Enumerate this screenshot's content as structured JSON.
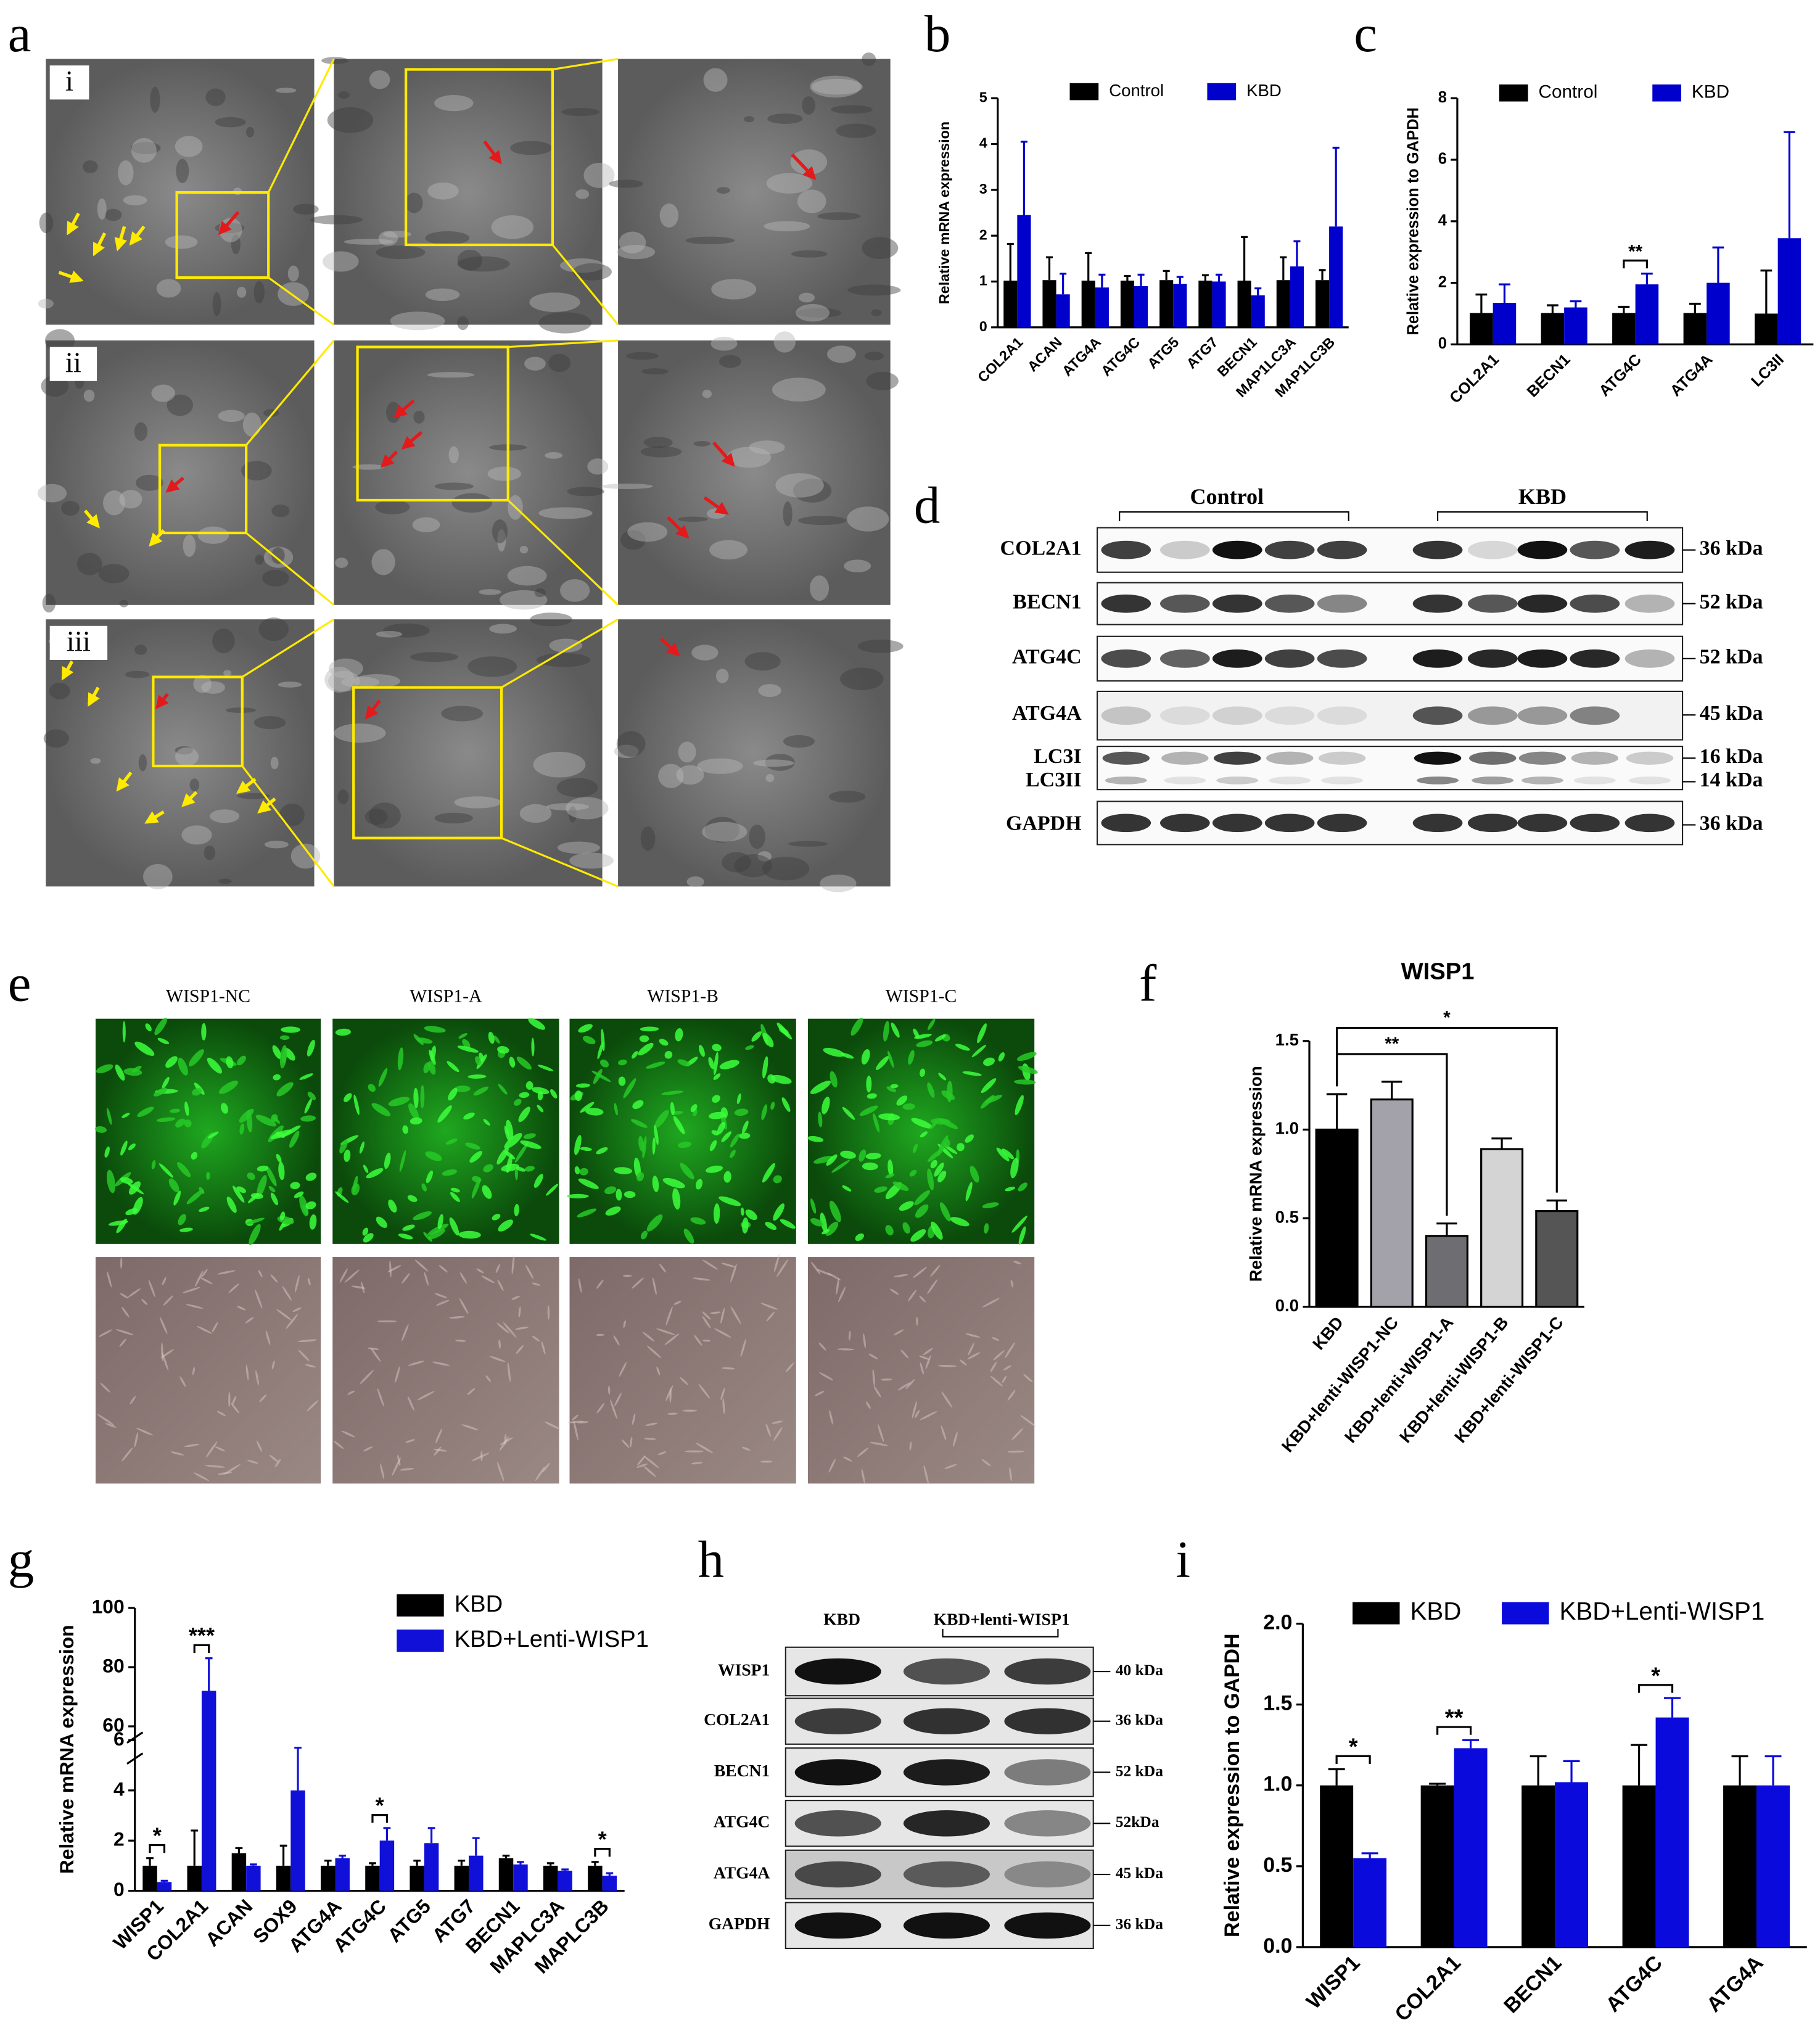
{
  "panel_labels": [
    "a",
    "b",
    "c",
    "d",
    "e",
    "f",
    "g",
    "h",
    "i"
  ],
  "tem": {
    "rows": [
      "i",
      "ii",
      "iii"
    ]
  },
  "blot_d": {
    "groups": [
      "Control",
      "KBD"
    ],
    "labels": [
      "COL2A1",
      "BECN1",
      "ATG4C",
      "ATG4A",
      "LC3I",
      "LC3II",
      "GAPDH"
    ],
    "sizes": [
      "36 kDa",
      "52 kDa",
      "52 kDa",
      "45 kDa",
      "16 kDa",
      "14 kDa",
      "36 kDa"
    ]
  },
  "fluorescence": {
    "columns": [
      "WISP1-NC",
      "WISP1-A",
      "WISP1-B",
      "WISP1-C"
    ]
  },
  "blot_h": {
    "groups": [
      "KBD",
      "KBD+lenti-WISP1"
    ],
    "labels": [
      "WISP1",
      "COL2A1",
      "BECN1",
      "ATG4C",
      "ATG4A",
      "GAPDH"
    ],
    "sizes": [
      "40 kDa",
      "36 kDa",
      "52 kDa",
      "52kDa",
      "45 kDa",
      "36 kDa"
    ]
  },
  "chart_data": [
    {
      "type": "bar",
      "y_label": "Relative mRNA expression",
      "categories": [
        "COL2A1",
        "ACAN",
        "ATG4A",
        "ATG4C",
        "ATG5",
        "ATG7",
        "BECN1",
        "MAP1LC3A",
        "MAP1LC3B"
      ],
      "series": [
        {
          "name": "Control",
          "color": "#000000",
          "values": [
            1.02,
            1.03,
            1.02,
            1.02,
            1.03,
            1.02,
            1.02,
            1.03,
            1.03
          ],
          "errors": [
            0.8,
            0.5,
            0.6,
            0.1,
            0.2,
            0.12,
            0.95,
            0.5,
            0.22
          ]
        },
        {
          "name": "KBD",
          "color": "#0000cc",
          "values": [
            2.45,
            0.72,
            0.87,
            0.9,
            0.95,
            1.0,
            0.7,
            1.33,
            2.2
          ],
          "errors": [
            1.6,
            0.45,
            0.28,
            0.25,
            0.15,
            0.15,
            0.15,
            0.55,
            1.72
          ]
        }
      ],
      "ylim": [
        0,
        5
      ],
      "yticks": [
        0,
        1,
        2,
        3,
        4,
        5
      ]
    },
    {
      "type": "bar",
      "y_label": "Relative expression to GAPDH",
      "categories": [
        "COL2A1",
        "BECN1",
        "ATG4C",
        "ATG4A",
        "LC3II"
      ],
      "series": [
        {
          "name": "Control",
          "color": "#000000",
          "values": [
            1.02,
            1.02,
            1.02,
            1.02,
            1.0
          ],
          "errors": [
            0.6,
            0.25,
            0.2,
            0.3,
            1.4
          ]
        },
        {
          "name": "KBD",
          "color": "#0000cc",
          "values": [
            1.35,
            1.2,
            1.95,
            2.0,
            3.45
          ],
          "errors": [
            0.6,
            0.2,
            0.35,
            1.15,
            3.45
          ]
        }
      ],
      "ylim": [
        0,
        8
      ],
      "yticks": [
        0,
        2,
        4,
        6,
        8
      ],
      "annotations": [
        {
          "text": "**",
          "category": "ATG4C"
        }
      ]
    },
    {
      "type": "bar",
      "title": "WISP1",
      "y_label": "Relative mRNA expression",
      "categories": [
        "KBD",
        "KBD+lenti-WISP1-NC",
        "KBD+lenti-WISP1-A",
        "KBD+lenti-WISP1-B",
        "KBD+lenti-WISP1-C"
      ],
      "series": [
        {
          "colors": [
            "#000000",
            "#a3a2aa",
            "#6d6d72",
            "#d4d4d4",
            "#555555"
          ],
          "values": [
            1.0,
            1.17,
            0.4,
            0.89,
            0.54
          ],
          "errors": [
            0.2,
            0.1,
            0.07,
            0.06,
            0.06
          ]
        }
      ],
      "ylim": [
        0,
        1.5
      ],
      "yticks": [
        {
          "value": 0,
          "label": "0.0"
        },
        {
          "value": 0.5,
          "label": "0.5"
        },
        {
          "value": 1,
          "label": "1.0"
        },
        {
          "value": 1.5,
          "label": "1.5"
        }
      ],
      "annotations": [
        {
          "text": "**",
          "between": [
            "KBD",
            "KBD+lenti-WISP1-A"
          ]
        },
        {
          "text": "*",
          "between": [
            "KBD",
            "KBD+lenti-WISP1-C"
          ]
        }
      ]
    },
    {
      "type": "bar",
      "y_label": "Relative mRNA expression",
      "categories": [
        "WISP1",
        "COL2A1",
        "ACAN",
        "SOX9",
        "ATG4A",
        "ATG4C",
        "ATG5",
        "ATG7",
        "BECN1",
        "MAPLC3A",
        "MAPLC3B"
      ],
      "series": [
        {
          "name": "KBD",
          "color": "#000000",
          "values": [
            1.0,
            1.0,
            1.5,
            1.0,
            1.0,
            1.0,
            1.0,
            1.0,
            1.3,
            1.0,
            1.0
          ],
          "errors": [
            0.3,
            1.4,
            0.2,
            0.8,
            0.2,
            0.1,
            0.2,
            0.2,
            0.1,
            0.1,
            0.15
          ]
        },
        {
          "name": "KBD+Lenti-WISP1",
          "color": "#1010d8",
          "values": [
            0.35,
            72,
            1.0,
            4.0,
            1.3,
            2.0,
            1.9,
            1.4,
            1.05,
            0.8,
            0.6
          ],
          "errors": [
            0.05,
            11,
            0.05,
            1.7,
            0.1,
            0.5,
            0.6,
            0.7,
            0.1,
            0.05,
            0.1
          ]
        }
      ],
      "ylim_segments": [
        [
          0,
          6
        ],
        [
          50,
          100
        ]
      ],
      "yticks": [
        0,
        2,
        4,
        6,
        60,
        80,
        100
      ],
      "annotations": [
        {
          "text": "*",
          "category": "WISP1"
        },
        {
          "text": "***",
          "category": "COL2A1"
        },
        {
          "text": "*",
          "category": "ATG4C"
        },
        {
          "text": "*",
          "category": "MAPLC3B"
        }
      ]
    },
    {
      "type": "bar",
      "y_label": "Relative expression to GAPDH",
      "categories": [
        "WISP1",
        "COL2A1",
        "BECN1",
        "ATG4C",
        "ATG4A"
      ],
      "series": [
        {
          "name": "KBD",
          "color": "#000000",
          "values": [
            1.0,
            1.0,
            1.0,
            1.0,
            1.0
          ],
          "errors": [
            0.1,
            0.01,
            0.18,
            0.25,
            0.18
          ]
        },
        {
          "name": "KBD+Lenti-WISP1",
          "color": "#0a0adc",
          "values": [
            0.55,
            1.23,
            1.02,
            1.42,
            1.0
          ],
          "errors": [
            0.03,
            0.05,
            0.13,
            0.12,
            0.18
          ]
        }
      ],
      "ylim": [
        0,
        2
      ],
      "yticks": [
        {
          "value": 0,
          "label": "0.0"
        },
        {
          "value": 0.5,
          "label": "0.5"
        },
        {
          "value": 1,
          "label": "1.0"
        },
        {
          "value": 1.5,
          "label": "1.5"
        },
        {
          "value": 2,
          "label": "2.0"
        }
      ],
      "annotations": [
        {
          "text": "*",
          "category": "WISP1"
        },
        {
          "text": "**",
          "category": "COL2A1"
        },
        {
          "text": "*",
          "category": "ATG4C"
        }
      ]
    }
  ]
}
